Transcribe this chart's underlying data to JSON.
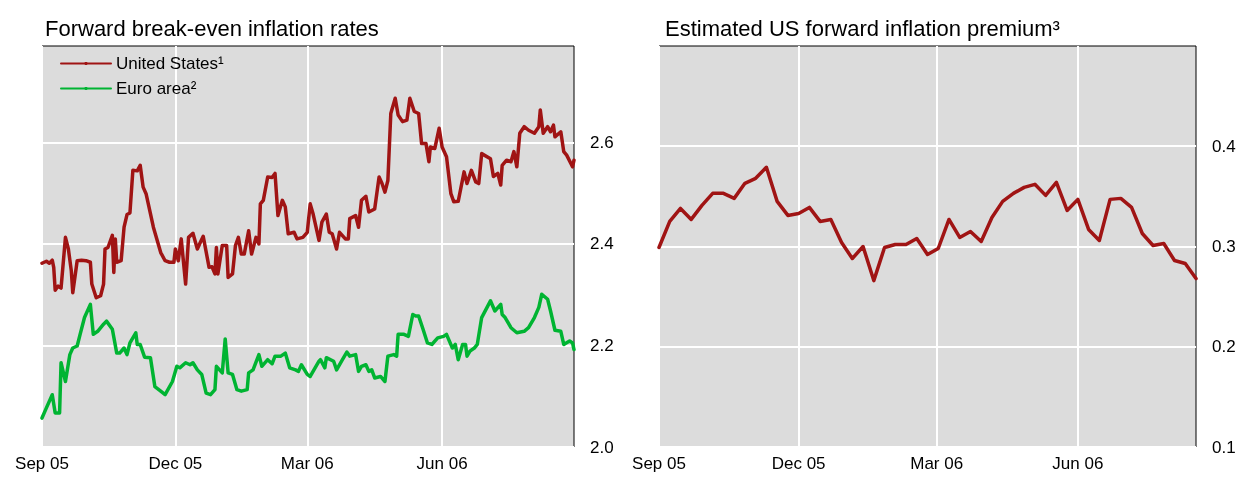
{
  "chart_data": [
    {
      "type": "line",
      "title": "Forward break-even inflation rates",
      "legend": "top left",
      "grid": true,
      "xlim": [
        "2005-09-01",
        "2006-08-30"
      ],
      "xticks": [
        {
          "value": "2005-09-01",
          "label": "Sep 05"
        },
        {
          "value": "2005-12-01",
          "label": "Dec 05"
        },
        {
          "value": "2006-03-01",
          "label": "Mar 06"
        },
        {
          "value": "2006-06-01",
          "label": "Jun 06"
        }
      ],
      "ylim": [
        2.0,
        2.79
      ],
      "yticks": [
        {
          "value": 2.0,
          "label": "2.0"
        },
        2.2,
        2.4,
        2.6
      ],
      "series": [
        {
          "name": "United States¹",
          "color": "#a01414",
          "x": [
            "2005-09-01",
            "2005-09-04",
            "2005-09-06",
            "2005-09-08",
            "2005-09-09",
            "2005-09-10",
            "2005-09-12",
            "2005-09-14",
            "2005-09-17",
            "2005-09-19",
            "2005-09-21",
            "2005-09-22",
            "2005-09-25",
            "2005-09-28",
            "2005-10-01",
            "2005-10-04",
            "2005-10-05",
            "2005-10-08",
            "2005-10-11",
            "2005-10-13",
            "2005-10-14",
            "2005-10-16",
            "2005-10-19",
            "2005-10-20",
            "2005-10-21",
            "2005-10-22",
            "2005-10-25",
            "2005-10-27",
            "2005-10-29",
            "2005-10-31",
            "2005-11-02",
            "2005-11-05",
            "2005-11-07",
            "2005-11-09",
            "2005-11-11",
            "2005-11-16",
            "2005-11-21",
            "2005-11-24",
            "2005-11-27",
            "2005-11-30",
            "2005-12-01",
            "2005-12-03",
            "2005-12-05",
            "2005-12-08",
            "2005-12-10",
            "2005-12-13",
            "2005-12-16",
            "2005-12-18",
            "2005-12-20",
            "2005-12-24",
            "2005-12-26",
            "2005-12-28",
            "2005-12-29",
            "2005-12-30",
            "2006-01-02",
            "2006-01-05",
            "2006-01-06",
            "2006-01-09",
            "2006-01-11",
            "2006-01-13",
            "2006-01-15",
            "2006-01-17",
            "2006-01-20",
            "2006-01-22",
            "2006-01-25",
            "2006-01-27",
            "2006-01-28",
            "2006-01-30",
            "2006-02-02",
            "2006-02-05",
            "2006-02-07",
            "2006-02-09",
            "2006-02-12",
            "2006-02-14",
            "2006-02-16",
            "2006-02-20",
            "2006-02-22",
            "2006-02-26",
            "2006-03-01",
            "2006-03-03",
            "2006-03-05",
            "2006-03-09",
            "2006-03-11",
            "2006-03-14",
            "2006-03-16",
            "2006-03-18",
            "2006-03-21",
            "2006-03-23",
            "2006-03-27",
            "2006-03-29",
            "2006-03-30",
            "2006-04-03",
            "2006-04-05",
            "2006-04-07",
            "2006-04-10",
            "2006-04-12",
            "2006-04-16",
            "2006-04-19",
            "2006-04-21",
            "2006-04-23",
            "2006-04-25",
            "2006-04-27",
            "2006-04-30",
            "2006-05-02",
            "2006-05-05",
            "2006-05-08",
            "2006-05-10",
            "2006-05-13",
            "2006-05-16",
            "2006-05-18",
            "2006-05-21",
            "2006-05-23",
            "2006-05-24",
            "2006-05-27",
            "2006-05-30",
            "2006-06-01",
            "2006-06-04",
            "2006-06-07",
            "2006-06-09",
            "2006-06-12",
            "2006-06-16",
            "2006-06-18",
            "2006-06-21",
            "2006-06-24",
            "2006-06-26",
            "2006-06-28",
            "2006-07-04",
            "2006-07-06",
            "2006-07-09",
            "2006-07-11",
            "2006-07-12",
            "2006-07-15",
            "2006-07-18",
            "2006-07-20",
            "2006-07-22",
            "2006-07-24",
            "2006-07-27",
            "2006-07-30",
            "2006-08-03",
            "2006-08-06",
            "2006-08-07",
            "2006-08-09",
            "2006-08-12",
            "2006-08-14",
            "2006-08-16",
            "2006-08-17",
            "2006-08-21",
            "2006-08-23",
            "2006-08-25",
            "2006-08-29",
            "2006-08-30"
          ],
          "values": [
            2.362,
            2.366,
            2.362,
            2.368,
            2.354,
            2.309,
            2.317,
            2.313,
            2.413,
            2.39,
            2.347,
            2.304,
            2.367,
            2.368,
            2.367,
            2.364,
            2.321,
            2.294,
            2.298,
            2.321,
            2.39,
            2.393,
            2.417,
            2.344,
            2.41,
            2.364,
            2.367,
            2.433,
            2.458,
            2.461,
            2.545,
            2.544,
            2.555,
            2.512,
            2.499,
            2.433,
            2.383,
            2.367,
            2.364,
            2.364,
            2.39,
            2.367,
            2.41,
            2.321,
            2.413,
            2.421,
            2.39,
            2.403,
            2.415,
            2.354,
            2.355,
            2.341,
            2.393,
            2.341,
            2.397,
            2.397,
            2.334,
            2.341,
            2.397,
            2.413,
            2.38,
            2.38,
            2.426,
            2.38,
            2.413,
            2.4,
            2.479,
            2.486,
            2.532,
            2.531,
            2.539,
            2.456,
            2.486,
            2.473,
            2.42,
            2.423,
            2.41,
            2.413,
            2.423,
            2.479,
            2.459,
            2.407,
            2.443,
            2.459,
            2.423,
            2.42,
            2.39,
            2.423,
            2.41,
            2.41,
            2.45,
            2.456,
            2.433,
            2.486,
            2.494,
            2.463,
            2.469,
            2.532,
            2.519,
            2.502,
            2.525,
            2.657,
            2.687,
            2.654,
            2.641,
            2.644,
            2.687,
            2.661,
            2.657,
            2.598,
            2.598,
            2.562,
            2.591,
            2.588,
            2.628,
            2.591,
            2.572,
            2.499,
            2.483,
            2.484,
            2.542,
            2.519,
            2.545,
            2.522,
            2.519,
            2.578,
            2.568,
            2.533,
            2.539,
            2.516,
            2.555,
            2.565,
            2.562,
            2.582,
            2.552,
            2.618,
            2.631,
            2.624,
            2.618,
            2.631,
            2.664,
            2.618,
            2.631,
            2.621,
            2.634,
            2.611,
            2.621,
            2.582,
            2.575,
            2.552,
            2.565
          ]
        },
        {
          "name": "Euro area²",
          "color": "#00b432",
          "x": [
            "2005-09-01",
            "2005-09-04",
            "2005-09-08",
            "2005-09-10",
            "2005-09-13",
            "2005-09-14",
            "2005-09-17",
            "2005-09-20",
            "2005-09-22",
            "2005-09-25",
            "2005-09-27",
            "2005-09-30",
            "2005-10-04",
            "2005-10-06",
            "2005-10-09",
            "2005-10-13",
            "2005-10-15",
            "2005-10-19",
            "2005-10-22",
            "2005-10-24",
            "2005-10-27",
            "2005-10-29",
            "2005-10-31",
            "2005-11-04",
            "2005-11-05",
            "2005-11-07",
            "2005-11-10",
            "2005-11-14",
            "2005-11-17",
            "2005-11-21",
            "2005-11-24",
            "2005-11-29",
            "2005-12-02",
            "2005-12-04",
            "2005-12-08",
            "2005-12-11",
            "2005-12-13",
            "2005-12-16",
            "2005-12-19",
            "2005-12-22",
            "2005-12-25",
            "2005-12-28",
            "2005-12-29",
            "2006-01-02",
            "2006-01-04",
            "2006-01-06",
            "2006-01-09",
            "2006-01-12",
            "2006-01-15",
            "2006-01-19",
            "2006-01-20",
            "2006-01-23",
            "2006-01-27",
            "2006-01-29",
            "2006-02-02",
            "2006-02-05",
            "2006-02-07",
            "2006-02-11",
            "2006-02-14",
            "2006-02-17",
            "2006-02-21",
            "2006-02-23",
            "2006-02-25",
            "2006-03-01",
            "2006-03-03",
            "2006-03-09",
            "2006-03-10",
            "2006-03-13",
            "2006-03-14",
            "2006-03-19",
            "2006-03-21",
            "2006-03-25",
            "2006-03-28",
            "2006-03-30",
            "2006-04-03",
            "2006-04-05",
            "2006-04-07",
            "2006-04-10",
            "2006-04-12",
            "2006-04-14",
            "2006-04-16",
            "2006-04-20",
            "2006-04-23",
            "2006-04-25",
            "2006-04-29",
            "2006-05-01",
            "2006-05-02",
            "2006-05-06",
            "2006-05-09",
            "2006-05-12",
            "2006-05-14",
            "2006-05-16",
            "2006-05-19",
            "2006-05-22",
            "2006-05-25",
            "2006-05-29",
            "2006-06-02",
            "2006-06-04",
            "2006-06-08",
            "2006-06-10",
            "2006-06-12",
            "2006-06-15",
            "2006-06-17",
            "2006-06-18",
            "2006-06-20",
            "2006-06-23",
            "2006-06-25",
            "2006-06-28",
            "2006-07-04",
            "2006-07-07",
            "2006-07-11",
            "2006-07-12",
            "2006-07-14",
            "2006-07-18",
            "2006-07-22",
            "2006-07-27",
            "2006-07-30",
            "2006-08-03",
            "2006-08-06",
            "2006-08-08",
            "2006-08-12",
            "2006-08-14",
            "2006-08-17",
            "2006-08-21",
            "2006-08-23",
            "2006-08-27",
            "2006-08-29",
            "2006-08-30"
          ],
          "values": [
            2.057,
            2.077,
            2.103,
            2.067,
            2.067,
            2.166,
            2.129,
            2.182,
            2.195,
            2.199,
            2.222,
            2.255,
            2.281,
            2.222,
            2.228,
            2.242,
            2.248,
            2.232,
            2.185,
            2.185,
            2.195,
            2.182,
            2.205,
            2.225,
            2.202,
            2.202,
            2.177,
            2.176,
            2.119,
            2.11,
            2.103,
            2.129,
            2.159,
            2.156,
            2.166,
            2.162,
            2.166,
            2.152,
            2.143,
            2.106,
            2.103,
            2.113,
            2.159,
            2.146,
            2.213,
            2.146,
            2.143,
            2.113,
            2.11,
            2.113,
            2.146,
            2.152,
            2.182,
            2.159,
            2.172,
            2.164,
            2.179,
            2.179,
            2.185,
            2.156,
            2.152,
            2.149,
            2.162,
            2.143,
            2.139,
            2.169,
            2.172,
            2.156,
            2.176,
            2.169,
            2.152,
            2.172,
            2.187,
            2.179,
            2.182,
            2.149,
            2.159,
            2.162,
            2.149,
            2.152,
            2.136,
            2.139,
            2.129,
            2.179,
            2.182,
            2.179,
            2.222,
            2.222,
            2.218,
            2.261,
            2.258,
            2.258,
            2.232,
            2.205,
            2.202,
            2.215,
            2.218,
            2.222,
            2.195,
            2.202,
            2.172,
            2.202,
            2.202,
            2.179,
            2.189,
            2.195,
            2.202,
            2.255,
            2.288,
            2.268,
            2.281,
            2.261,
            2.255,
            2.235,
            2.225,
            2.228,
            2.235,
            2.255,
            2.275,
            2.301,
            2.291,
            2.268,
            2.23,
            2.228,
            2.202,
            2.209,
            2.205,
            2.192
          ]
        }
      ]
    },
    {
      "type": "line",
      "title": "Estimated US forward inflation premium³",
      "grid": true,
      "xlim": [
        "2005-09-01",
        "2006-08-17"
      ],
      "xticks": [
        {
          "value": "2005-09-01",
          "label": "Sep 05"
        },
        {
          "value": "2005-12-01",
          "label": "Dec 05"
        },
        {
          "value": "2006-03-01",
          "label": "Mar 06"
        },
        {
          "value": "2006-06-01",
          "label": "Jun 06"
        }
      ],
      "ylim": [
        0.1,
        0.5
      ],
      "yticks": [
        0.1,
        0.2,
        0.3,
        0.4
      ],
      "series": [
        {
          "color": "#a01414",
          "x": [
            "2005-09-01",
            "2005-09-08",
            "2005-09-15",
            "2005-09-22",
            "2005-09-29",
            "2005-10-06",
            "2005-10-13",
            "2005-10-20",
            "2005-10-27",
            "2005-11-03",
            "2005-11-10",
            "2005-11-17",
            "2005-11-24",
            "2005-12-01",
            "2005-12-08",
            "2005-12-15",
            "2005-12-22",
            "2005-12-29",
            "2006-01-05",
            "2006-01-12",
            "2006-01-19",
            "2006-01-26",
            "2006-02-02",
            "2006-02-09",
            "2006-02-16",
            "2006-02-23",
            "2006-03-02",
            "2006-03-09",
            "2006-03-16",
            "2006-03-23",
            "2006-03-30",
            "2006-04-06",
            "2006-04-13",
            "2006-04-20",
            "2006-04-27",
            "2006-05-04",
            "2006-05-11",
            "2006-05-18",
            "2006-05-25",
            "2006-06-01",
            "2006-06-08",
            "2006-06-15",
            "2006-06-22",
            "2006-06-29",
            "2006-07-06",
            "2006-07-13",
            "2006-07-20",
            "2006-07-27",
            "2006-08-03",
            "2006-08-10",
            "2006-08-17"
          ],
          "values": [
            0.299,
            0.325,
            0.338,
            0.327,
            0.341,
            0.353,
            0.353,
            0.348,
            0.363,
            0.368,
            0.379,
            0.345,
            0.331,
            0.333,
            0.339,
            0.325,
            0.327,
            0.304,
            0.288,
            0.3,
            0.266,
            0.299,
            0.302,
            0.302,
            0.308,
            0.292,
            0.298,
            0.327,
            0.309,
            0.315,
            0.305,
            0.329,
            0.345,
            0.353,
            0.359,
            0.362,
            0.351,
            0.364,
            0.336,
            0.347,
            0.317,
            0.306,
            0.347,
            0.348,
            0.339,
            0.313,
            0.301,
            0.303,
            0.286,
            0.283,
            0.268
          ]
        }
      ]
    }
  ]
}
